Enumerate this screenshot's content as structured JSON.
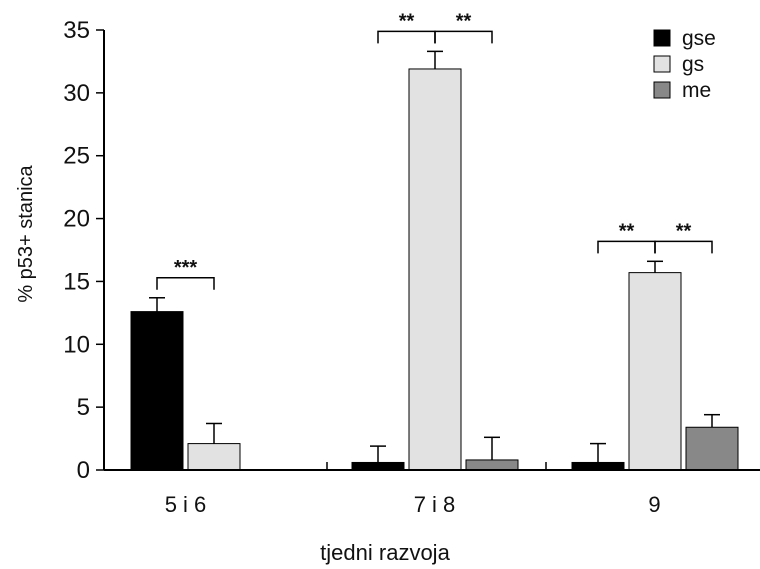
{
  "chart_data": {
    "type": "bar",
    "xlabel": "tjedni razvoja",
    "ylabel": "% p53+ stanica",
    "ylim": [
      0,
      35
    ],
    "yticks": [
      0,
      5,
      10,
      15,
      20,
      25,
      30,
      35
    ],
    "categories": [
      "5 i 6",
      "7 i 8",
      "9"
    ],
    "legend_position": "top-right",
    "series": [
      {
        "name": "gse",
        "color": "#000000",
        "values": [
          12.6,
          0.6,
          0.6
        ],
        "errors": [
          1.1,
          1.3,
          1.5
        ]
      },
      {
        "name": "gs",
        "color": "#e2e2e2",
        "values": [
          2.1,
          31.9,
          15.7
        ],
        "errors": [
          1.6,
          1.4,
          0.9
        ]
      },
      {
        "name": "me",
        "color": "#888888",
        "values": [
          null,
          0.8,
          3.4
        ],
        "errors": [
          null,
          1.8,
          1.0
        ]
      }
    ],
    "significance": [
      {
        "category": 0,
        "from_series": 0,
        "to_series": 1,
        "label": "***"
      },
      {
        "category": 1,
        "from_series": 0,
        "to_series": 1,
        "label": "**"
      },
      {
        "category": 1,
        "from_series": 1,
        "to_series": 2,
        "label": "**"
      },
      {
        "category": 2,
        "from_series": 0,
        "to_series": 1,
        "label": "**"
      },
      {
        "category": 2,
        "from_series": 1,
        "to_series": 2,
        "label": "**"
      }
    ]
  }
}
